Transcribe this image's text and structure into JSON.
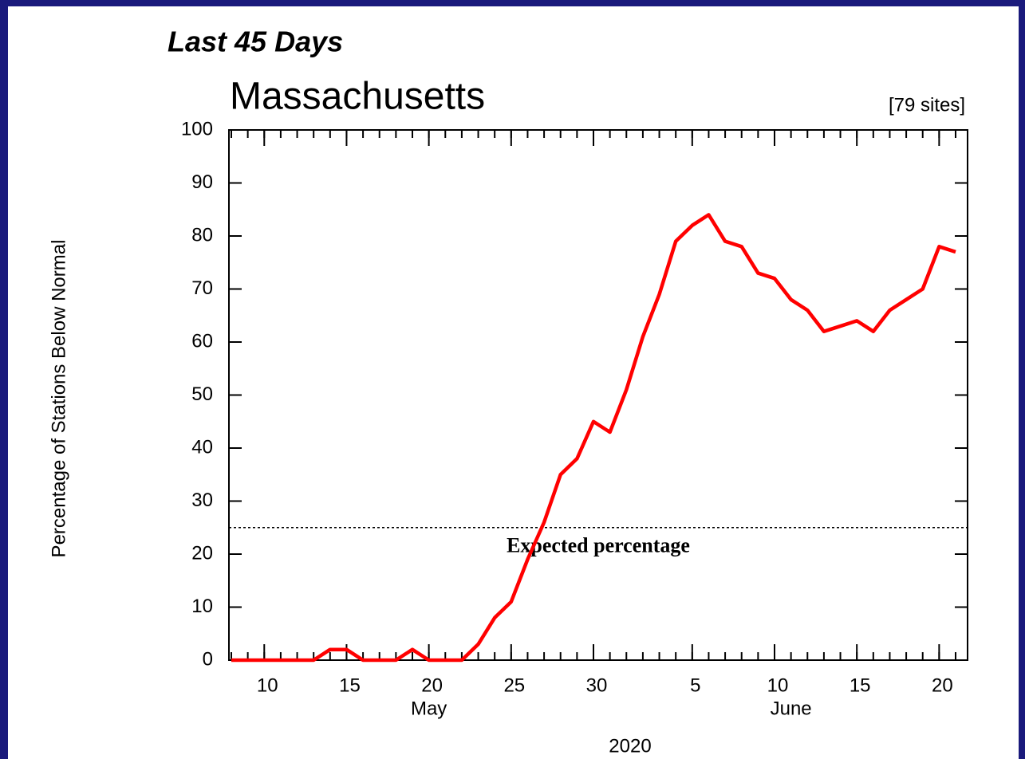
{
  "chart_data": {
    "type": "line",
    "header": "Last 45 Days",
    "title": "Massachusetts",
    "subtitle": "[79 sites]",
    "ylabel": "Percentage of Stations Below Normal",
    "x": [
      "2020-05-08",
      "2020-05-09",
      "2020-05-10",
      "2020-05-11",
      "2020-05-12",
      "2020-05-13",
      "2020-05-14",
      "2020-05-15",
      "2020-05-16",
      "2020-05-17",
      "2020-05-18",
      "2020-05-19",
      "2020-05-20",
      "2020-05-21",
      "2020-05-22",
      "2020-05-23",
      "2020-05-24",
      "2020-05-25",
      "2020-05-26",
      "2020-05-27",
      "2020-05-28",
      "2020-05-29",
      "2020-05-30",
      "2020-05-31",
      "2020-06-01",
      "2020-06-02",
      "2020-06-03",
      "2020-06-04",
      "2020-06-05",
      "2020-06-06",
      "2020-06-07",
      "2020-06-08",
      "2020-06-09",
      "2020-06-10",
      "2020-06-11",
      "2020-06-12",
      "2020-06-13",
      "2020-06-14",
      "2020-06-15",
      "2020-06-16",
      "2020-06-17",
      "2020-06-18",
      "2020-06-19",
      "2020-06-20",
      "2020-06-21"
    ],
    "values": [
      0,
      0,
      0,
      0,
      0,
      0,
      2,
      2,
      0,
      0,
      0,
      2,
      0,
      0,
      0,
      3,
      8,
      11,
      19,
      26,
      35,
      38,
      45,
      43,
      51,
      61,
      69,
      79,
      82,
      84,
      79,
      78,
      73,
      72,
      68,
      66,
      62,
      63,
      64,
      62,
      66,
      68,
      70,
      78,
      77
    ],
    "color": "#ff0000",
    "xlim": [
      "2020-05-08",
      "2020-06-21"
    ],
    "xticks": [
      {
        "value": "2020-05-10",
        "label": "10"
      },
      {
        "value": "2020-05-15",
        "label": "15"
      },
      {
        "value": "2020-05-20",
        "label": "20"
      },
      {
        "value": "2020-05-25",
        "label": "25"
      },
      {
        "value": "2020-05-30",
        "label": "30"
      },
      {
        "value": "2020-06-05",
        "label": "5"
      },
      {
        "value": "2020-06-10",
        "label": "10"
      },
      {
        "value": "2020-06-15",
        "label": "15"
      },
      {
        "value": "2020-06-20",
        "label": "20"
      }
    ],
    "month_labels": [
      {
        "value": "2020-05-20",
        "label": "May"
      },
      {
        "value": "2020-06-11",
        "label": "June"
      }
    ],
    "year_label": "2020",
    "ylim": [
      0,
      100
    ],
    "yticks": [
      0,
      10,
      20,
      30,
      40,
      50,
      60,
      70,
      80,
      90,
      100
    ],
    "reference_line": {
      "value": 25,
      "label": "Expected percentage"
    }
  }
}
